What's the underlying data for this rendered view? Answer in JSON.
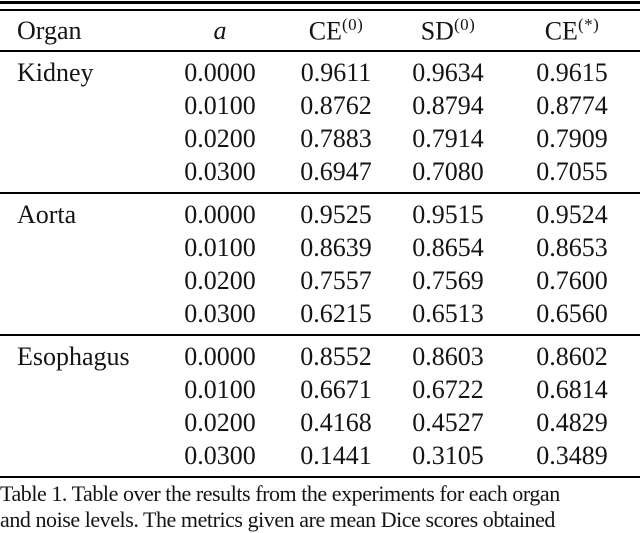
{
  "page": {
    "background": "#ffffff",
    "text_color": "#141414",
    "rule_color": "#000000"
  },
  "table": {
    "headers": [
      {
        "key": "organ",
        "label": "Organ",
        "sup": "",
        "italic": false
      },
      {
        "key": "a",
        "label": "a",
        "sup": "",
        "italic": true
      },
      {
        "key": "ce0",
        "label": "CE",
        "sup": "(0)",
        "italic": false
      },
      {
        "key": "sd0",
        "label": "SD",
        "sup": "(0)",
        "italic": false
      },
      {
        "key": "cestar",
        "label": "CE",
        "sup": "(*)",
        "italic": false
      }
    ],
    "groups": [
      {
        "organ": "Kidney",
        "rows": [
          [
            "0.0000",
            "0.9611",
            "0.9634",
            "0.9615"
          ],
          [
            "0.0100",
            "0.8762",
            "0.8794",
            "0.8774"
          ],
          [
            "0.0200",
            "0.7883",
            "0.7914",
            "0.7909"
          ],
          [
            "0.0300",
            "0.6947",
            "0.7080",
            "0.7055"
          ]
        ]
      },
      {
        "organ": "Aorta",
        "rows": [
          [
            "0.0000",
            "0.9525",
            "0.9515",
            "0.9524"
          ],
          [
            "0.0100",
            "0.8639",
            "0.8654",
            "0.8653"
          ],
          [
            "0.0200",
            "0.7557",
            "0.7569",
            "0.7600"
          ],
          [
            "0.0300",
            "0.6215",
            "0.6513",
            "0.6560"
          ]
        ]
      },
      {
        "organ": "Esophagus",
        "rows": [
          [
            "0.0000",
            "0.8552",
            "0.8603",
            "0.8602"
          ],
          [
            "0.0100",
            "0.6671",
            "0.6722",
            "0.6814"
          ],
          [
            "0.0200",
            "0.4168",
            "0.4527",
            "0.4829"
          ],
          [
            "0.0300",
            "0.1441",
            "0.3105",
            "0.3489"
          ]
        ]
      }
    ]
  },
  "caption": {
    "line1": "Table 1. Table over the results from the experiments for each organ",
    "line2_clipped": "and noise levels. The metrics given are mean Dice scores obtained"
  }
}
